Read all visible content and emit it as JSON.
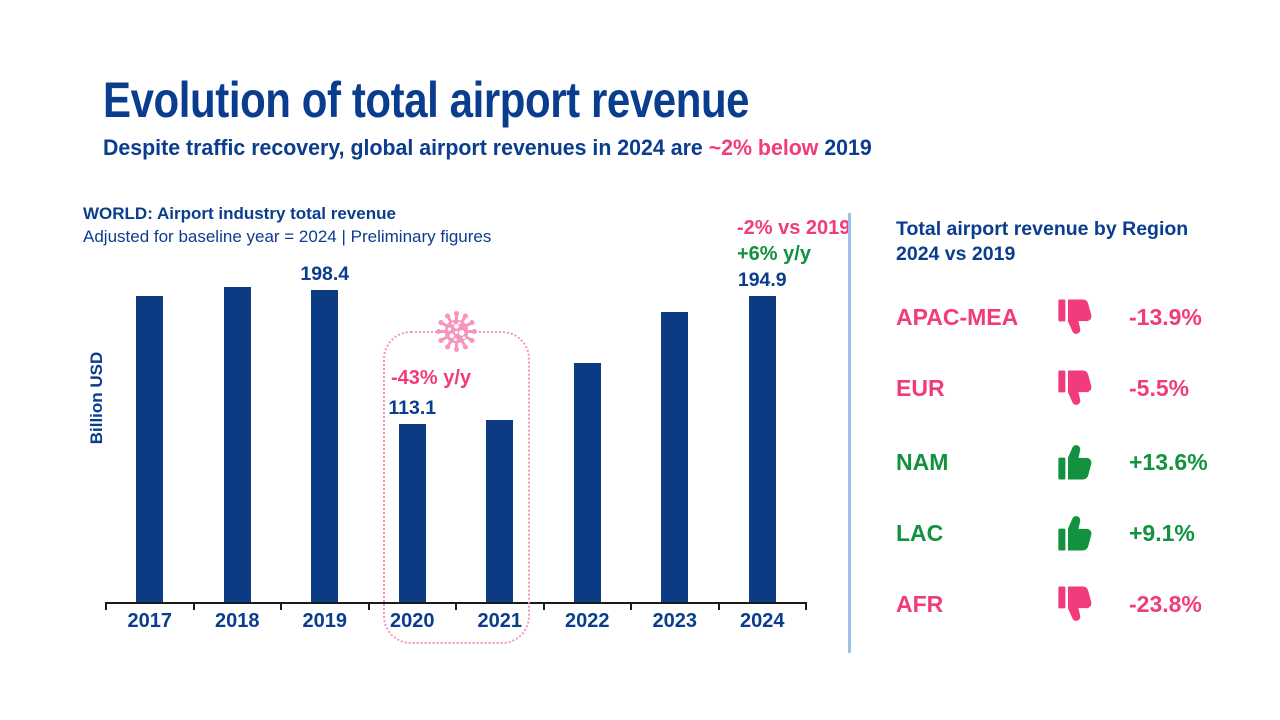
{
  "slide": {
    "title": "Evolution of total airport revenue",
    "subtitle_prefix": "Despite traffic recovery, global airport revenues in 2024 are ",
    "subtitle_highlight": "~2% below",
    "subtitle_suffix": " 2019"
  },
  "colors": {
    "navy": "#0B3D8F",
    "bar": "#0C3B84",
    "pink": "#F23B7C",
    "green": "#12913F",
    "light_pink": "#F795BC",
    "divider": "#9CC3E5",
    "axis": "#1A1A1A"
  },
  "chart_data": {
    "type": "bar",
    "title": "WORLD: Airport industry total revenue",
    "subtitle": "Adjusted for baseline year = 2024 | Preliminary figures",
    "ylabel": "Billion USD",
    "xlabel": "",
    "categories": [
      "2017",
      "2018",
      "2019",
      "2020",
      "2021",
      "2022",
      "2023",
      "2024"
    ],
    "values": [
      194.4,
      200.1,
      198.4,
      113.1,
      115.6,
      152.0,
      184.3,
      194.9
    ],
    "data_labels": {
      "2019": "198.4",
      "2020": "113.1",
      "2024": "194.9"
    },
    "ylim": [
      0,
      250
    ],
    "grid": false,
    "legend": false,
    "annotations": [
      {
        "text": "-43% y/y",
        "color": "pink",
        "target": "2020"
      },
      {
        "text": "-2% vs 2019",
        "color": "pink",
        "target": "2024"
      },
      {
        "text": "+6% y/y",
        "color": "green",
        "target": "2024"
      }
    ],
    "covid_highlight": {
      "years": [
        "2020",
        "2021"
      ],
      "icon": "coronavirus-icon",
      "style": "dotted-rounded-box"
    }
  },
  "region_panel": {
    "title_line1": "Total airport revenue by Region",
    "title_line2": "2024 vs 2019",
    "rows": [
      {
        "region": "APAC-MEA",
        "change": "-13.9%",
        "direction": "down"
      },
      {
        "region": "EUR",
        "change": "-5.5%",
        "direction": "down"
      },
      {
        "region": "NAM",
        "change": "+13.6%",
        "direction": "up"
      },
      {
        "region": "LAC",
        "change": "+9.1%",
        "direction": "up"
      },
      {
        "region": "AFR",
        "change": "-23.8%",
        "direction": "down"
      }
    ]
  }
}
